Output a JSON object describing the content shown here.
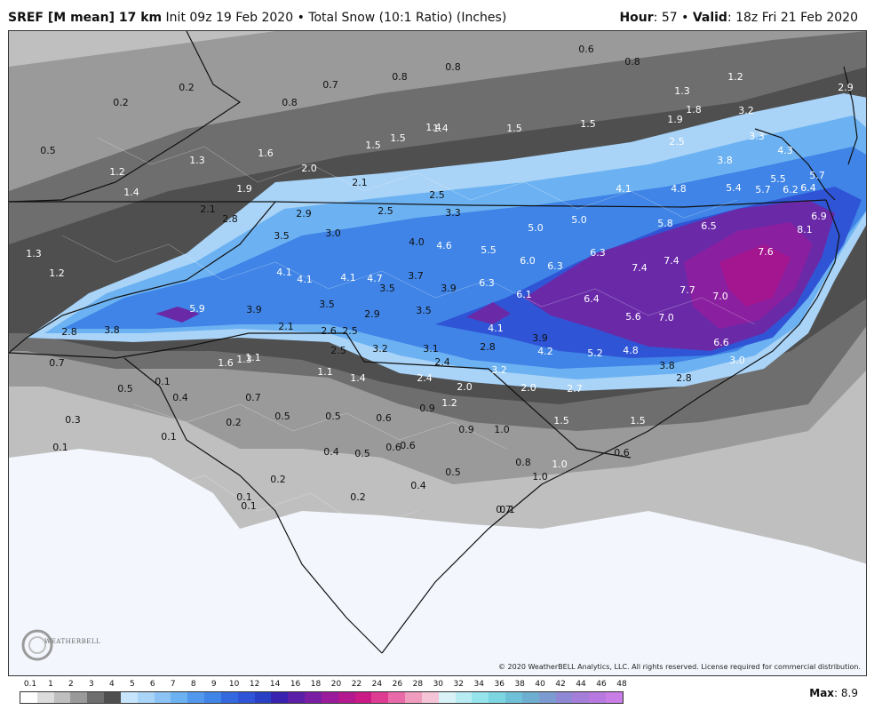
{
  "header": {
    "model": "SREF [M mean] 17 km",
    "init": "Init 09z 19 Feb 2020",
    "bullet": "•",
    "product": "Total Snow (10:1 Ratio) (Inches)",
    "hour_label": "Hour",
    "hour_value": ": 57",
    "valid_label": "Valid",
    "valid_value": ": 18z Fri 21 Feb 2020"
  },
  "map": {
    "copyright": "© 2020 WeatherBELL Analytics, LLC. All rights reserved. License required for commercial distribution.",
    "logo_text": "WEATHERBELL",
    "colors": {
      "background": "#f3f7fd",
      "gray_light": "#bfbfbf",
      "gray_mid": "#9a9a9a",
      "gray_dark": "#6e6e6e",
      "gray_darker": "#4f4f4f",
      "blue_pale": "#a9d3f7",
      "blue_light": "#6cb2f2",
      "blue_mid": "#3f84e6",
      "blue_deep": "#2f55d6",
      "purple": "#6a2aa8",
      "violet": "#8a1f9f",
      "magenta": "#a3168f"
    },
    "values": [
      {
        "t": "0.2",
        "c": "dark"
      },
      {
        "t": "0.2",
        "c": "dark"
      },
      {
        "t": "0.7",
        "c": "dark"
      },
      {
        "t": "0.8",
        "c": "dark"
      },
      {
        "t": "0.8",
        "c": "dark"
      },
      {
        "t": "0.8",
        "c": "dark"
      },
      {
        "t": "0.6",
        "c": "dark"
      },
      {
        "t": "0.8",
        "c": "dark"
      },
      {
        "t": "0.5",
        "c": "dark"
      },
      {
        "t": "1.2",
        "c": "light"
      },
      {
        "t": "1.4",
        "c": "light"
      },
      {
        "t": "1.3",
        "c": "light"
      },
      {
        "t": "1.6",
        "c": "light"
      },
      {
        "t": "1.4",
        "c": "light"
      },
      {
        "t": "2.0",
        "c": "light"
      },
      {
        "t": "1.5",
        "c": "light"
      },
      {
        "t": "1.5",
        "c": "light"
      },
      {
        "t": "1.4",
        "c": "light"
      },
      {
        "t": "1.5",
        "c": "light"
      },
      {
        "t": "1.5",
        "c": "light"
      },
      {
        "t": "1.3",
        "c": "light"
      },
      {
        "t": "1.9",
        "c": "light"
      },
      {
        "t": "1.8",
        "c": "light"
      },
      {
        "t": "1.2",
        "c": "light"
      },
      {
        "t": "2.5",
        "c": "light"
      },
      {
        "t": "3.8",
        "c": "light"
      },
      {
        "t": "4.1",
        "c": "light"
      },
      {
        "t": "4.8",
        "c": "light"
      },
      {
        "t": "5.4",
        "c": "light"
      },
      {
        "t": "5.7",
        "c": "light"
      },
      {
        "t": "5.5",
        "c": "light"
      },
      {
        "t": "6.2",
        "c": "light"
      },
      {
        "t": "6.4",
        "c": "light"
      },
      {
        "t": "5.7",
        "c": "light"
      },
      {
        "t": "4.3",
        "c": "light"
      },
      {
        "t": "3.2",
        "c": "light"
      },
      {
        "t": "3.3",
        "c": "light"
      },
      {
        "t": "2.9",
        "c": "light"
      },
      {
        "t": "1.9",
        "c": "light"
      },
      {
        "t": "2.1",
        "c": "dark"
      },
      {
        "t": "2.8",
        "c": "dark"
      },
      {
        "t": "2.1",
        "c": "dark"
      },
      {
        "t": "2.9",
        "c": "dark"
      },
      {
        "t": "2.5",
        "c": "dark"
      },
      {
        "t": "2.5",
        "c": "dark"
      },
      {
        "t": "3.3",
        "c": "dark"
      },
      {
        "t": "3.5",
        "c": "dark"
      },
      {
        "t": "3.0",
        "c": "dark"
      },
      {
        "t": "4.0",
        "c": "dark"
      },
      {
        "t": "4.6",
        "c": "light"
      },
      {
        "t": "5.5",
        "c": "light"
      },
      {
        "t": "5.0",
        "c": "light"
      },
      {
        "t": "5.0",
        "c": "light"
      },
      {
        "t": "5.8",
        "c": "light"
      },
      {
        "t": "6.5",
        "c": "light"
      },
      {
        "t": "6.0",
        "c": "light"
      },
      {
        "t": "6.9",
        "c": "light"
      },
      {
        "t": "8.1",
        "c": "light"
      },
      {
        "t": "7.6",
        "c": "light"
      },
      {
        "t": "7.4",
        "c": "light"
      },
      {
        "t": "7.4",
        "c": "light"
      },
      {
        "t": "6.3",
        "c": "light"
      },
      {
        "t": "6.3",
        "c": "light"
      },
      {
        "t": "7.7",
        "c": "light"
      },
      {
        "t": "7.0",
        "c": "light"
      },
      {
        "t": "7.0",
        "c": "light"
      },
      {
        "t": "6.4",
        "c": "light"
      },
      {
        "t": "6.1",
        "c": "light"
      },
      {
        "t": "6.3",
        "c": "light"
      },
      {
        "t": "5.6",
        "c": "light"
      },
      {
        "t": "6.6",
        "c": "light"
      },
      {
        "t": "4.1",
        "c": "light"
      },
      {
        "t": "4.1",
        "c": "light"
      },
      {
        "t": "4.1",
        "c": "light"
      },
      {
        "t": "4.7",
        "c": "light"
      },
      {
        "t": "3.5",
        "c": "dark"
      },
      {
        "t": "3.7",
        "c": "dark"
      },
      {
        "t": "3.9",
        "c": "dark"
      },
      {
        "t": "3.5",
        "c": "dark"
      },
      {
        "t": "2.9",
        "c": "dark"
      },
      {
        "t": "3.5",
        "c": "dark"
      },
      {
        "t": "5.9",
        "c": "light"
      },
      {
        "t": "3.9",
        "c": "dark"
      },
      {
        "t": "3.8",
        "c": "dark"
      },
      {
        "t": "2.8",
        "c": "dark"
      },
      {
        "t": "1.3",
        "c": "light"
      },
      {
        "t": "1.2",
        "c": "light"
      },
      {
        "t": "0.7",
        "c": "dark"
      },
      {
        "t": "2.1",
        "c": "dark"
      },
      {
        "t": "2.6",
        "c": "dark"
      },
      {
        "t": "2.5",
        "c": "dark"
      },
      {
        "t": "2.5",
        "c": "dark"
      },
      {
        "t": "3.2",
        "c": "dark"
      },
      {
        "t": "3.1",
        "c": "dark"
      },
      {
        "t": "4.1",
        "c": "light"
      },
      {
        "t": "2.8",
        "c": "dark"
      },
      {
        "t": "3.9",
        "c": "dark"
      },
      {
        "t": "4.2",
        "c": "light"
      },
      {
        "t": "5.2",
        "c": "light"
      },
      {
        "t": "4.8",
        "c": "light"
      },
      {
        "t": "3.8",
        "c": "dark"
      },
      {
        "t": "3.0",
        "c": "light"
      },
      {
        "t": "2.8",
        "c": "dark"
      },
      {
        "t": "2.4",
        "c": "dark"
      },
      {
        "t": "3.2",
        "c": "light"
      },
      {
        "t": "2.4",
        "c": "light"
      },
      {
        "t": "2.0",
        "c": "light"
      },
      {
        "t": "2.0",
        "c": "light"
      },
      {
        "t": "2.7",
        "c": "light"
      },
      {
        "t": "1.2",
        "c": "light"
      },
      {
        "t": "0.9",
        "c": "dark"
      },
      {
        "t": "0.9",
        "c": "dark"
      },
      {
        "t": "1.0",
        "c": "dark"
      },
      {
        "t": "1.5",
        "c": "light"
      },
      {
        "t": "1.5",
        "c": "light"
      },
      {
        "t": "1.0",
        "c": "light"
      },
      {
        "t": "1.3",
        "c": "light"
      },
      {
        "t": "1.6",
        "c": "light"
      },
      {
        "t": "1.1",
        "c": "light"
      },
      {
        "t": "1.1",
        "c": "light"
      },
      {
        "t": "1.4",
        "c": "light"
      },
      {
        "t": "0.5",
        "c": "dark"
      },
      {
        "t": "0.1",
        "c": "dark"
      },
      {
        "t": "0.4",
        "c": "dark"
      },
      {
        "t": "0.7",
        "c": "dark"
      },
      {
        "t": "0.5",
        "c": "dark"
      },
      {
        "t": "0.5",
        "c": "dark"
      },
      {
        "t": "0.6",
        "c": "dark"
      },
      {
        "t": "0.2",
        "c": "dark"
      },
      {
        "t": "0.3",
        "c": "dark"
      },
      {
        "t": "0.1",
        "c": "dark"
      },
      {
        "t": "0.1",
        "c": "dark"
      },
      {
        "t": "0.4",
        "c": "dark"
      },
      {
        "t": "0.5",
        "c": "dark"
      },
      {
        "t": "0.6",
        "c": "dark"
      },
      {
        "t": "0.6",
        "c": "dark"
      },
      {
        "t": "0.5",
        "c": "dark"
      },
      {
        "t": "0.8",
        "c": "dark"
      },
      {
        "t": "1.0",
        "c": "dark"
      },
      {
        "t": "0.6",
        "c": "dark"
      },
      {
        "t": "0.7",
        "c": "dark"
      },
      {
        "t": "0.4",
        "c": "dark"
      },
      {
        "t": "0.2",
        "c": "dark"
      },
      {
        "t": "0.2",
        "c": "dark"
      },
      {
        "t": "0.1",
        "c": "dark"
      },
      {
        "t": "0.1",
        "c": "dark"
      },
      {
        "t": "0.1",
        "c": "dark"
      }
    ]
  },
  "legend": {
    "ticks": [
      "0.1",
      "1",
      "2",
      "3",
      "4",
      "5",
      "6",
      "7",
      "8",
      "9",
      "10",
      "12",
      "14",
      "16",
      "18",
      "20",
      "22",
      "24",
      "26",
      "28",
      "30",
      "32",
      "34",
      "36",
      "38",
      "40",
      "42",
      "44",
      "46",
      "48"
    ],
    "colors": [
      "#ffffff",
      "#dcdcdc",
      "#bfbfbf",
      "#9a9a9a",
      "#6e6e6e",
      "#4f4f4f",
      "#c6e4fb",
      "#a9d3f7",
      "#8cc2f4",
      "#6cb2f2",
      "#5298ec",
      "#3f84e6",
      "#3468df",
      "#2f55d6",
      "#2940c4",
      "#3a22b0",
      "#5b1fa8",
      "#7a1ea3",
      "#9a1b9c",
      "#b4198f",
      "#c91a86",
      "#de3b93",
      "#e86aa8",
      "#f09cbf",
      "#f5c4d6",
      "#d9f2f7",
      "#b6ecf2",
      "#95e4ec",
      "#7cd6e2",
      "#6fc1d7",
      "#6eaed0",
      "#7c9bd0",
      "#8f88d4",
      "#a47ed8",
      "#b779df",
      "#c97ee6"
    ],
    "max_label": "Max",
    "max_value": ": 8.9"
  }
}
